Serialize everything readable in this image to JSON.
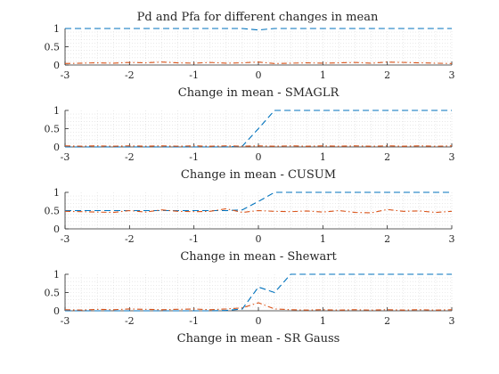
{
  "chart_data": [
    {
      "type": "line",
      "title": "Pd and Pfa for different changes in mean",
      "xlabel": "Change in mean - SMAGLR",
      "xlim": [
        -3,
        3
      ],
      "ylim": [
        0,
        1
      ],
      "xticks": [
        "-3",
        "-2",
        "-1",
        "0",
        "1",
        "2",
        "3"
      ],
      "yticks": [
        "0",
        "0.5",
        "1"
      ],
      "grid": true,
      "x": [
        -3.0,
        -2.75,
        -2.5,
        -2.25,
        -2.0,
        -1.75,
        -1.5,
        -1.25,
        -1.0,
        -0.75,
        -0.5,
        -0.25,
        0.0,
        0.25,
        0.5,
        0.75,
        1.0,
        1.25,
        1.5,
        1.75,
        2.0,
        2.25,
        2.5,
        2.75,
        3.0
      ],
      "series": [
        {
          "color": "#0072BD",
          "dash": "dashed",
          "values": [
            1,
            1,
            1,
            1,
            1,
            1,
            1,
            1,
            1,
            1,
            1,
            1,
            0.96,
            1,
            1,
            1,
            1,
            1,
            1,
            1,
            1,
            1,
            1,
            1,
            1
          ]
        },
        {
          "color": "#D95319",
          "dash": "dashdot",
          "values": [
            0.04,
            0.05,
            0.06,
            0.05,
            0.07,
            0.06,
            0.08,
            0.06,
            0.05,
            0.07,
            0.05,
            0.06,
            0.08,
            0.04,
            0.05,
            0.06,
            0.05,
            0.06,
            0.07,
            0.05,
            0.08,
            0.07,
            0.06,
            0.05,
            0.04
          ]
        }
      ]
    },
    {
      "type": "line",
      "title": "",
      "xlabel": "Change in mean - CUSUM",
      "xlim": [
        -3,
        3
      ],
      "ylim": [
        0,
        1
      ],
      "xticks": [
        "-3",
        "-2",
        "-1",
        "0",
        "1",
        "2",
        "3"
      ],
      "yticks": [
        "0",
        "0.5",
        "1"
      ],
      "grid": true,
      "x": [
        -3.0,
        -2.75,
        -2.5,
        -2.25,
        -2.0,
        -1.75,
        -1.5,
        -1.25,
        -1.0,
        -0.75,
        -0.5,
        -0.25,
        0.0,
        0.25,
        0.5,
        0.75,
        1.0,
        1.25,
        1.5,
        1.75,
        2.0,
        2.25,
        2.5,
        2.75,
        3.0
      ],
      "series": [
        {
          "color": "#0072BD",
          "dash": "dashed",
          "values": [
            0,
            0,
            0,
            0,
            0,
            0,
            0,
            0,
            0,
            0,
            0,
            0.02,
            0.5,
            1,
            1,
            1,
            1,
            1,
            1,
            1,
            1,
            1,
            1,
            1,
            1
          ]
        },
        {
          "color": "#D95319",
          "dash": "dashdot",
          "values": [
            0.03,
            0.02,
            0.03,
            0.02,
            0.03,
            0.02,
            0.03,
            0.02,
            0.03,
            0.02,
            0.03,
            0.02,
            0.03,
            0.02,
            0.03,
            0.02,
            0.03,
            0.02,
            0.03,
            0.02,
            0.03,
            0.02,
            0.03,
            0.02,
            0.03
          ]
        }
      ]
    },
    {
      "type": "line",
      "title": "",
      "xlabel": "Change in mean - Shewart",
      "xlim": [
        -3,
        3
      ],
      "ylim": [
        0,
        1
      ],
      "xticks": [
        "-3",
        "-2",
        "-1",
        "0",
        "1",
        "2",
        "3"
      ],
      "yticks": [
        "0",
        "0.5",
        "1"
      ],
      "grid": true,
      "x": [
        -3.0,
        -2.75,
        -2.5,
        -2.25,
        -2.0,
        -1.75,
        -1.5,
        -1.25,
        -1.0,
        -0.75,
        -0.5,
        -0.25,
        0.0,
        0.25,
        0.5,
        0.75,
        1.0,
        1.25,
        1.5,
        1.75,
        2.0,
        2.25,
        2.5,
        2.75,
        3.0
      ],
      "series": [
        {
          "color": "#0072BD",
          "dash": "dashed",
          "values": [
            0.5,
            0.5,
            0.5,
            0.5,
            0.5,
            0.5,
            0.5,
            0.5,
            0.5,
            0.5,
            0.5,
            0.52,
            0.75,
            1,
            1,
            1,
            1,
            1,
            1,
            1,
            1,
            1,
            1,
            1,
            1
          ]
        },
        {
          "color": "#D95319",
          "dash": "dashdot",
          "values": [
            0.48,
            0.47,
            0.46,
            0.45,
            0.5,
            0.46,
            0.52,
            0.48,
            0.47,
            0.48,
            0.55,
            0.45,
            0.5,
            0.48,
            0.47,
            0.49,
            0.46,
            0.5,
            0.45,
            0.44,
            0.53,
            0.48,
            0.49,
            0.45,
            0.48
          ]
        }
      ]
    },
    {
      "type": "line",
      "title": "",
      "xlabel": "Change in mean - SR Gauss",
      "xlim": [
        -3,
        3
      ],
      "ylim": [
        0,
        1
      ],
      "xticks": [
        "-3",
        "-2",
        "-1",
        "0",
        "1",
        "2",
        "3"
      ],
      "yticks": [
        "0",
        "0.5",
        "1"
      ],
      "grid": true,
      "x": [
        -3.0,
        -2.75,
        -2.5,
        -2.25,
        -2.0,
        -1.75,
        -1.5,
        -1.25,
        -1.0,
        -0.75,
        -0.5,
        -0.25,
        0.0,
        0.25,
        0.5,
        0.75,
        1.0,
        1.25,
        1.5,
        1.75,
        2.0,
        2.25,
        2.5,
        2.75,
        3.0
      ],
      "series": [
        {
          "color": "#0072BD",
          "dash": "dashed",
          "values": [
            0,
            0,
            0,
            0,
            0,
            0,
            0,
            0,
            0,
            0,
            0.01,
            0.05,
            0.65,
            0.5,
            1,
            1,
            1,
            1,
            1,
            1,
            1,
            1,
            1,
            1,
            1
          ]
        },
        {
          "color": "#D95319",
          "dash": "dashdot",
          "values": [
            0.03,
            0.02,
            0.04,
            0.03,
            0.05,
            0.04,
            0.03,
            0.04,
            0.05,
            0.03,
            0.05,
            0.08,
            0.22,
            0.05,
            0.03,
            0.02,
            0.03,
            0.02,
            0.03,
            0.02,
            0.03,
            0.02,
            0.03,
            0.02,
            0.03
          ]
        }
      ]
    }
  ]
}
